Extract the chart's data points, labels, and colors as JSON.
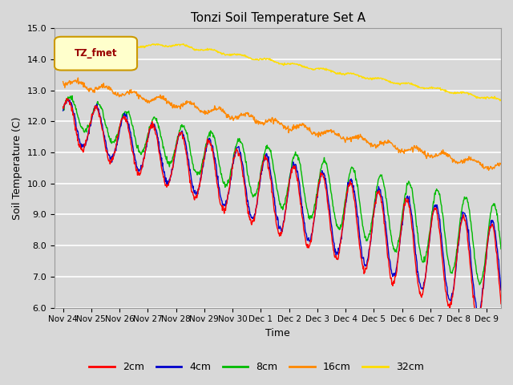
{
  "title": "Tonzi Soil Temperature Set A",
  "xlabel": "Time",
  "ylabel": "Soil Temperature (C)",
  "ylim": [
    6.0,
    15.0
  ],
  "yticks": [
    6.0,
    7.0,
    8.0,
    9.0,
    10.0,
    11.0,
    12.0,
    13.0,
    14.0,
    15.0
  ],
  "colors": {
    "2cm": "#ff0000",
    "4cm": "#0000cc",
    "8cm": "#00bb00",
    "16cm": "#ff8800",
    "32cm": "#ffdd00"
  },
  "legend_label": "TZ_fmet",
  "legend_box_facecolor": "#ffffcc",
  "legend_box_edgecolor": "#cc9900",
  "fig_facecolor": "#d8d8d8",
  "ax_facecolor": "#d8d8d8",
  "n_points": 960,
  "xtick_labels": [
    "Nov 24",
    "Nov 25",
    "Nov 26",
    "Nov 27",
    "Nov 28",
    "Nov 29",
    "Nov 30",
    "Dec 1",
    "Dec 2",
    "Dec 3",
    "Dec 4",
    "Dec 5",
    "Dec 6",
    "Dec 7",
    "Dec 8",
    "Dec 9"
  ],
  "xtick_positions": [
    0,
    1,
    2,
    3,
    4,
    5,
    6,
    7,
    8,
    9,
    10,
    11,
    12,
    13,
    14,
    15
  ]
}
